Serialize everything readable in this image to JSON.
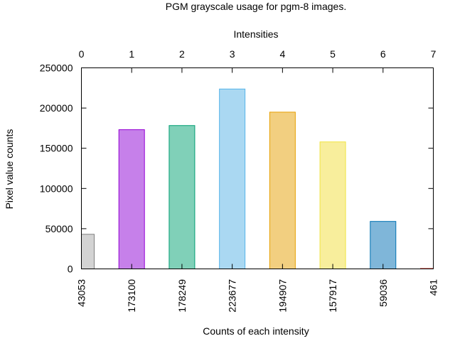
{
  "chart_data": {
    "type": "bar",
    "title": "PGM grayscale usage for pgm-8 images.",
    "x2label": "Intensities",
    "xlabel": "Counts of each intensity",
    "ylabel": "Pixel value counts",
    "categories": [
      "0",
      "1",
      "2",
      "3",
      "4",
      "5",
      "6",
      "7"
    ],
    "bottom_tick_labels": [
      "43053",
      "173100",
      "178249",
      "223677",
      "194907",
      "157917",
      "59036",
      "461"
    ],
    "values": [
      43053,
      173100,
      178249,
      223677,
      194907,
      157917,
      59036,
      461
    ],
    "ylim": [
      0,
      250000
    ],
    "yticks": [
      0,
      50000,
      100000,
      150000,
      200000,
      250000
    ],
    "xlim": [
      0,
      7
    ],
    "grid": false,
    "legend": "none",
    "bar_fills": [
      "#d3d3d3",
      "#c680ea",
      "#80d0b8",
      "#aad8f2",
      "#f2cf80",
      "#f8ee9c",
      "#7fb6d9",
      "#e68080"
    ],
    "bar_strokes": [
      "#808080",
      "#9400d3",
      "#009e73",
      "#56b4e9",
      "#e69f00",
      "#f0e442",
      "#0072b2",
      "#e51e10"
    ]
  }
}
